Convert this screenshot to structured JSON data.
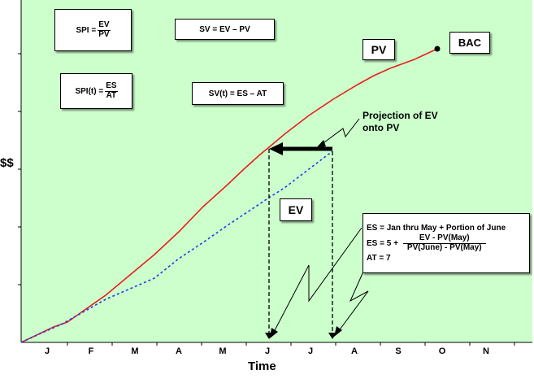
{
  "colors": {
    "plot_bg": "#ccffcc",
    "pv_line": "#e8201c",
    "ev_line": "#1a3ee8",
    "arrow": "#000000"
  },
  "y_label": "$$",
  "x_label": "Time",
  "months": [
    "J",
    "F",
    "M",
    "A",
    "M",
    "J",
    "J",
    "A",
    "S",
    "O",
    "N"
  ],
  "boxes": {
    "spi": {
      "lhs": "SPI =",
      "num": "EV",
      "den": "PV"
    },
    "sv": "SV = EV – PV",
    "spit": {
      "lhs": "SPI(t) =",
      "num": "ES",
      "den": "AT"
    },
    "svt": "SV(t)  =  ES  –  AT",
    "pv": "PV",
    "bac": "BAC",
    "ev": "EV",
    "es": {
      "line1": "ES = Jan thru May + Portion of June",
      "line2_lhs": "ES = 5 +",
      "line2_num": "EV - PV(May)",
      "line2_den": "PV(June) - PV(May)",
      "line3": "AT = 7"
    }
  },
  "projection_label": [
    "Projection of EV",
    "onto PV"
  ]
}
